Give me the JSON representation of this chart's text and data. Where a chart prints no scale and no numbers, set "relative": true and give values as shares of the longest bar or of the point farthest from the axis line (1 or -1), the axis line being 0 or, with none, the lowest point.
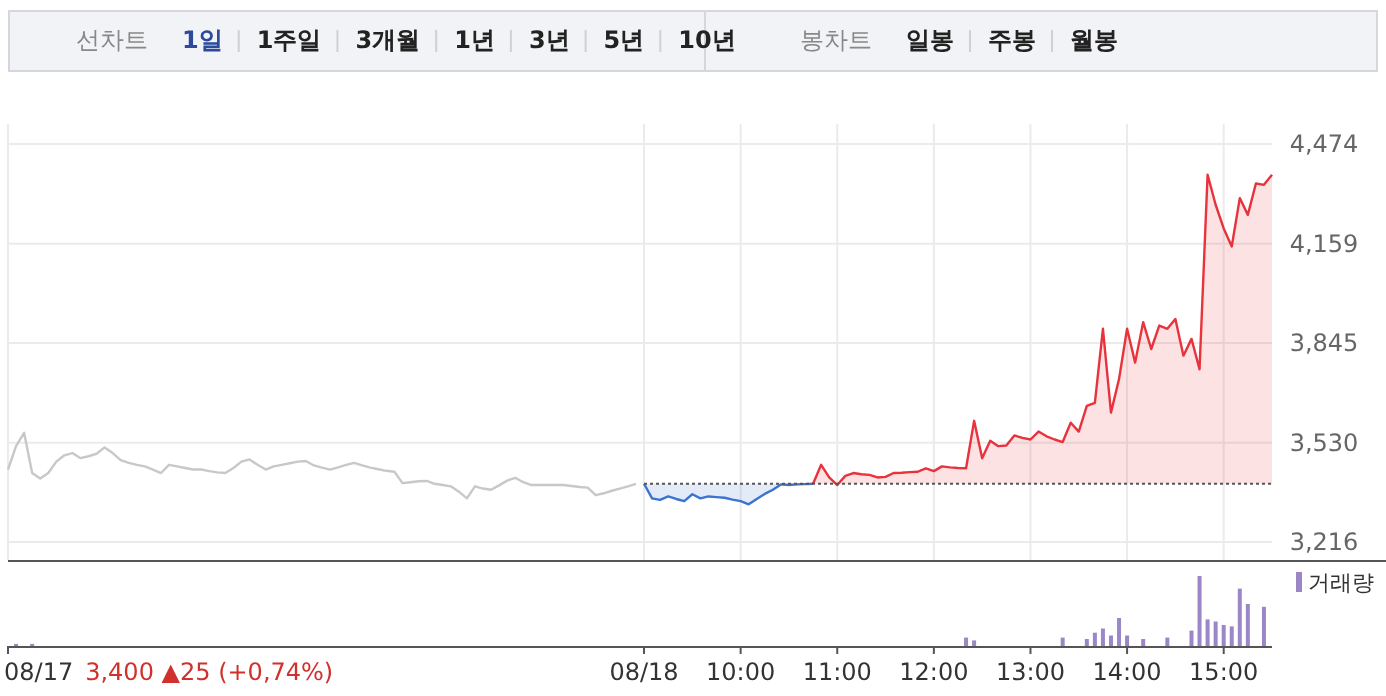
{
  "chart_data": [
    {
      "type": "other",
      "annotations": [
        "선차트",
        "1일",
        "1주일",
        "3개월",
        "1년",
        "3년",
        "5년",
        "10년",
        "봉차트",
        "일봉",
        "주봉",
        "월봉"
      ],
      "colors": [
        "#888888",
        "#2b4a9c",
        "#222222",
        "#222222",
        "#222222",
        "#222222",
        "#222222",
        "#222222",
        "#888888",
        "#222222",
        "#222222",
        "#222222"
      ]
    },
    {
      "type": "line",
      "categories": [
        null,
        null,
        null,
        null,
        null,
        null,
        null,
        null,
        null,
        null,
        null,
        null,
        null,
        null,
        null,
        null,
        null,
        null,
        null,
        null,
        null,
        null,
        null,
        null,
        null,
        null,
        null,
        null,
        null,
        null,
        null,
        null,
        null,
        null,
        null,
        null,
        null,
        null,
        null,
        null,
        null,
        null,
        null,
        null,
        null,
        null,
        null,
        null,
        null,
        null,
        null,
        null,
        null,
        null,
        null,
        null,
        null,
        null,
        null,
        null,
        null,
        null,
        null,
        null,
        null,
        null,
        null,
        null,
        null,
        null,
        null,
        null,
        null,
        null,
        null,
        null,
        null,
        null,
        null,
        null,
        null,
        null,
        null,
        null,
        null,
        null,
        null,
        null,
        null,
        null,
        null,
        null,
        null,
        null,
        null,
        null,
        null,
        null,
        null,
        null,
        null,
        null,
        null,
        null,
        null,
        null,
        null,
        null,
        null,
        null,
        null,
        null,
        null,
        null,
        null,
        null,
        null,
        null,
        null,
        null,
        null,
        null,
        null,
        null,
        null,
        null,
        null,
        null,
        null,
        null,
        null,
        null,
        null,
        null,
        null,
        null,
        null,
        null,
        null,
        null,
        null,
        null,
        null,
        null,
        null,
        null,
        null,
        null,
        null,
        null,
        null,
        null,
        null,
        null,
        null,
        null,
        null,
        null
      ],
      "series": [
        {
          "color": "#c8c8c8",
          "values": [
            3445,
            3519,
            3561,
            3434,
            3417,
            3434,
            3470,
            3490,
            3497,
            3481,
            3487,
            3495,
            3515,
            3497,
            3475,
            3466,
            3460,
            3455,
            3445,
            3434,
            3460,
            3455,
            3450,
            3445,
            3445,
            3440,
            3436,
            3434,
            3450,
            3470,
            3477,
            3460,
            3445,
            3455,
            3460,
            3465,
            3470,
            3472,
            3458,
            3451,
            3445,
            3452,
            3460,
            3466,
            3458,
            3451,
            3446,
            3441,
            3438,
            3402,
            3405,
            3408,
            3409,
            3400,
            3396,
            3392,
            3375,
            3354,
            3392,
            3385,
            3381,
            3395,
            3410,
            3419,
            3405,
            3396,
            3396,
            3396,
            3396,
            3396,
            3393,
            3390,
            3388,
            3364,
            3370,
            3378,
            3385,
            3392,
            3400,
            null,
            null,
            null,
            null,
            null,
            null,
            null,
            null,
            null,
            null,
            null,
            null,
            null,
            null,
            null,
            null,
            null,
            null,
            null,
            null,
            null,
            null,
            null,
            null,
            null,
            null,
            null,
            null,
            null,
            null,
            null,
            null,
            null,
            null,
            null,
            null,
            null,
            null,
            null,
            null,
            null,
            null,
            null,
            null,
            null,
            null,
            null,
            null,
            null,
            null,
            null,
            null,
            null,
            null,
            null,
            null,
            null,
            null,
            null,
            null,
            null,
            null,
            null,
            null,
            null,
            null,
            null,
            null,
            null,
            null,
            null,
            null,
            null,
            null,
            null,
            null,
            null,
            null,
            null
          ]
        },
        {
          "type": "area",
          "color": "#3a74d0",
          "values": [
            null,
            null,
            null,
            null,
            null,
            null,
            null,
            null,
            null,
            null,
            null,
            null,
            null,
            null,
            null,
            null,
            null,
            null,
            null,
            null,
            null,
            null,
            null,
            null,
            null,
            null,
            null,
            null,
            null,
            null,
            null,
            null,
            null,
            null,
            null,
            null,
            null,
            null,
            null,
            null,
            null,
            null,
            null,
            null,
            null,
            null,
            null,
            null,
            null,
            null,
            null,
            null,
            null,
            null,
            null,
            null,
            null,
            null,
            null,
            null,
            null,
            null,
            null,
            null,
            null,
            null,
            null,
            null,
            null,
            null,
            null,
            null,
            null,
            null,
            null,
            null,
            null,
            null,
            null,
            3400,
            3354,
            3349,
            3360,
            3352,
            3345,
            3367,
            3354,
            3360,
            3358,
            3356,
            3350,
            3345,
            3335,
            3352,
            3368,
            3381,
            3398,
            3396,
            3398,
            3399,
            3400,
            null,
            null,
            null,
            null,
            null,
            null,
            null,
            null,
            null,
            null,
            null,
            null,
            null,
            null,
            null,
            null,
            null,
            null,
            null,
            null,
            null,
            null,
            null,
            null,
            null,
            null,
            null,
            null,
            null,
            null,
            null,
            null,
            null,
            null,
            null,
            null,
            null,
            null,
            null,
            null,
            null,
            null,
            null,
            null,
            null,
            null,
            null,
            null,
            null,
            null,
            null,
            null,
            null,
            null,
            null,
            null,
            null
          ]
        },
        {
          "type": "area",
          "color": "#e8323c",
          "values": [
            null,
            null,
            null,
            null,
            null,
            null,
            null,
            null,
            null,
            null,
            null,
            null,
            null,
            null,
            null,
            null,
            null,
            null,
            null,
            null,
            null,
            null,
            null,
            null,
            null,
            null,
            null,
            null,
            null,
            null,
            null,
            null,
            null,
            null,
            null,
            null,
            null,
            null,
            null,
            null,
            null,
            null,
            null,
            null,
            null,
            null,
            null,
            null,
            null,
            null,
            null,
            null,
            null,
            null,
            null,
            null,
            null,
            null,
            null,
            null,
            null,
            null,
            null,
            null,
            null,
            null,
            null,
            null,
            null,
            null,
            null,
            null,
            null,
            null,
            null,
            null,
            null,
            null,
            null,
            null,
            null,
            null,
            null,
            null,
            null,
            null,
            null,
            null,
            null,
            null,
            null,
            null,
            null,
            null,
            null,
            null,
            null,
            null,
            null,
            null,
            3400,
            3460,
            3420,
            3396,
            3425,
            3434,
            3430,
            3428,
            3420,
            3422,
            3434,
            3435,
            3437,
            3438,
            3449,
            3440,
            3455,
            3452,
            3450,
            3449,
            3599,
            3481,
            3536,
            3519,
            3521,
            3553,
            3545,
            3540,
            3565,
            3550,
            3540,
            3532,
            3593,
            3565,
            3646,
            3656,
            3890,
            3625,
            3731,
            3890,
            3783,
            3911,
            3826,
            3900,
            3890,
            3921,
            3805,
            3858,
            3762,
            4377,
            4282,
            4207,
            4150,
            4303,
            4250,
            4349,
            4345,
            4377
          ]
        }
      ],
      "ylim": [
        3216,
        4474
      ],
      "yticks": [
        {
          "value": 3216,
          "label": "3,216"
        },
        {
          "value": 3530,
          "label": "3,530"
        },
        {
          "value": 3845,
          "label": "3,845"
        },
        {
          "value": 4159,
          "label": "4,159"
        },
        {
          "value": 4474,
          "label": "4,474"
        }
      ],
      "tick_labels": "y",
      "grid": true,
      "ref_lines": [
        {
          "axis": "y",
          "value": 3400,
          "color": "#555555",
          "line_style": "dotted"
        }
      ]
    },
    {
      "type": "bar",
      "relative": true,
      "categories": [
        "08/17",
        null,
        null,
        null,
        null,
        null,
        null,
        null,
        null,
        null,
        null,
        null,
        null,
        null,
        null,
        null,
        null,
        null,
        null,
        null,
        null,
        null,
        null,
        null,
        null,
        null,
        null,
        null,
        null,
        null,
        null,
        null,
        null,
        null,
        null,
        null,
        null,
        null,
        null,
        null,
        null,
        null,
        null,
        null,
        null,
        null,
        null,
        null,
        null,
        null,
        null,
        null,
        null,
        null,
        null,
        null,
        null,
        null,
        null,
        null,
        null,
        null,
        null,
        null,
        null,
        null,
        null,
        null,
        null,
        null,
        null,
        null,
        null,
        null,
        null,
        null,
        null,
        null,
        null,
        "08/18",
        null,
        null,
        null,
        null,
        null,
        null,
        null,
        null,
        null,
        null,
        null,
        "10:00",
        null,
        null,
        null,
        null,
        null,
        null,
        null,
        null,
        null,
        null,
        null,
        "11:00",
        null,
        null,
        null,
        null,
        null,
        null,
        null,
        null,
        null,
        null,
        null,
        "12:00",
        null,
        null,
        null,
        null,
        null,
        null,
        null,
        null,
        null,
        null,
        null,
        "13:00",
        null,
        null,
        null,
        null,
        null,
        null,
        null,
        null,
        null,
        null,
        null,
        "14:00",
        null,
        null,
        null,
        null,
        null,
        null,
        null,
        null,
        null,
        null,
        null,
        "15:00",
        null,
        null,
        null,
        null,
        null,
        null
      ],
      "series": [
        {
          "name": "거래량",
          "color": "#9b87c8",
          "values": [
            null,
            0.03,
            null,
            0.03,
            null,
            null,
            null,
            null,
            null,
            null,
            null,
            null,
            null,
            null,
            null,
            null,
            null,
            null,
            null,
            null,
            null,
            null,
            null,
            null,
            null,
            null,
            null,
            null,
            null,
            null,
            null,
            null,
            null,
            null,
            null,
            null,
            null,
            null,
            null,
            null,
            null,
            null,
            null,
            null,
            null,
            null,
            null,
            null,
            null,
            null,
            null,
            null,
            null,
            null,
            null,
            null,
            null,
            null,
            null,
            null,
            null,
            null,
            null,
            null,
            null,
            null,
            null,
            null,
            null,
            null,
            null,
            null,
            null,
            null,
            null,
            null,
            null,
            null,
            null,
            null,
            null,
            null,
            null,
            null,
            null,
            null,
            null,
            null,
            null,
            null,
            null,
            null,
            null,
            null,
            null,
            null,
            null,
            null,
            null,
            null,
            null,
            null,
            null,
            null,
            null,
            null,
            null,
            null,
            null,
            null,
            null,
            null,
            null,
            null,
            null,
            null,
            null,
            null,
            null,
            0.12,
            0.08,
            null,
            null,
            null,
            null,
            null,
            null,
            null,
            null,
            null,
            null,
            0.12,
            null,
            null,
            0.1,
            0.19,
            0.25,
            0.15,
            0.4,
            0.15,
            null,
            0.1,
            null,
            null,
            0.12,
            null,
            null,
            0.22,
            1,
            0.38,
            0.35,
            0.3,
            0.28,
            0.82,
            0.6,
            null,
            0.56,
            null
          ]
        }
      ],
      "tick_labels": "x",
      "legend": "top right",
      "annotations": [
        "3,400 ▲25 (+0,74%)"
      ]
    }
  ]
}
